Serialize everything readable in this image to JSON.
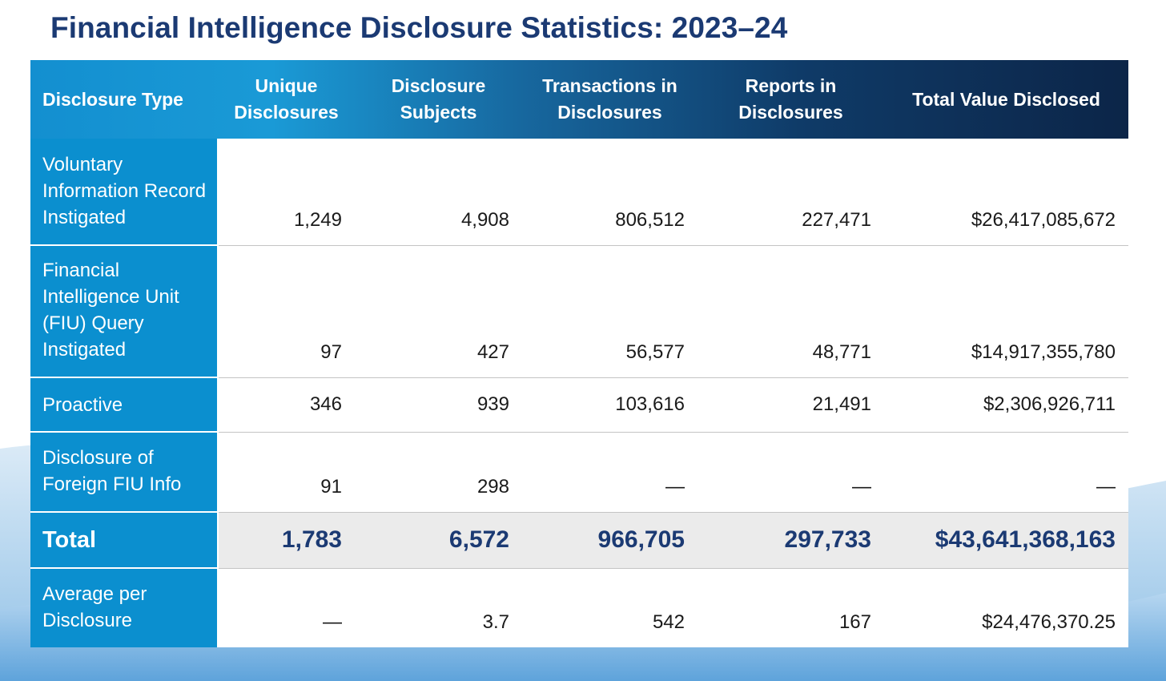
{
  "title": "Financial Intelligence Disclosure Statistics: 2023–24",
  "colors": {
    "title": "#1b3a73",
    "label_cell": "#0b8fcf",
    "header_start": "#138fd0",
    "header_end": "#0c2548",
    "total_row": "#ebebeb"
  },
  "columns": [
    "Disclosure Type",
    "Unique Disclosures",
    "Disclosure Subjects",
    "Transactions in Disclosures",
    "Reports in Disclosures",
    "Total Value Disclosed"
  ],
  "rows": [
    {
      "label": "Voluntary Information Record Instigated",
      "values": [
        "1,249",
        "4,908",
        "806,512",
        "227,471",
        "$26,417,085,672"
      ]
    },
    {
      "label": "Financial Intelligence Unit (FIU) Query Instigated",
      "values": [
        "97",
        "427",
        "56,577",
        "48,771",
        "$14,917,355,780"
      ]
    },
    {
      "label": "Proactive",
      "values": [
        "346",
        "939",
        "103,616",
        "21,491",
        "$2,306,926,711"
      ]
    },
    {
      "label": "Disclosure of Foreign FIU Info",
      "values": [
        "91",
        "298",
        "—",
        "—",
        "—"
      ]
    },
    {
      "label": "Total",
      "values": [
        "1,783",
        "6,572",
        "966,705",
        "297,733",
        "$43,641,368,163"
      ]
    },
    {
      "label": "Average per Disclosure",
      "values": [
        "—",
        "3.7",
        "542",
        "167",
        "$24,476,370.25"
      ]
    }
  ]
}
